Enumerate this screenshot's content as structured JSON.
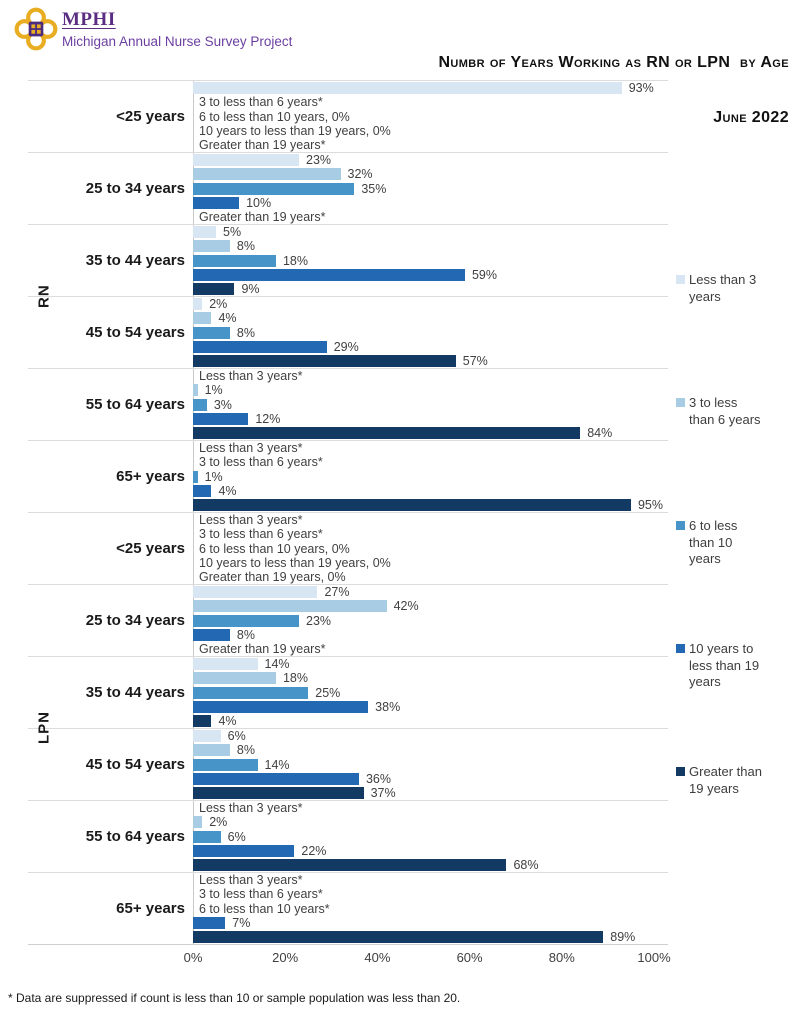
{
  "header": {
    "logo": {
      "acronym": "MPHI",
      "subtitle": "Michigan Annual Nurse Survey Project"
    },
    "title_line1": "Numbr of Years Working as RN or LPN  by Age",
    "title_line2": "June 2022"
  },
  "footnote": "* Data are suppressed if count is less than 10 or sample population was less than 20.",
  "colors": {
    "logo_gold": "#E9AD21",
    "logo_purple": "#4B2B7F",
    "grid_line": "#dcdcdc",
    "axis_line": "#c9c9c9",
    "label_text": "#404040"
  },
  "chart_data": {
    "type": "bar",
    "orientation": "horizontal",
    "title": "Numbr of Years Working as RN or LPN by Age",
    "subtitle": "June 2022",
    "xlim": [
      0,
      100
    ],
    "x_ticks": [
      "0%",
      "20%",
      "40%",
      "60%",
      "80%",
      "100%"
    ],
    "grid": false,
    "legend_position": "right",
    "series_names": [
      "Less than 3 years",
      "3 to less than 6 years",
      "6 to less than 10 years",
      "10 years to less than 19 years",
      "Greater than 19 years"
    ],
    "series_colors": [
      "#d8e6f3",
      "#a7cce4",
      "#4795c8",
      "#2368b2",
      "#123a62"
    ],
    "groups": [
      {
        "name": "RN",
        "age_rows": [
          {
            "age_label": "<25 years",
            "entries": [
              {
                "display": "bar",
                "value": 93,
                "label": "93%"
              },
              {
                "display": "text",
                "value": null,
                "label": "3 to less than 6 years*"
              },
              {
                "display": "text",
                "value": 0,
                "label": "6 to less than 10 years, 0%"
              },
              {
                "display": "text",
                "value": 0,
                "label": "10 years to less than 19 years, 0%"
              },
              {
                "display": "text",
                "value": null,
                "label": "Greater than 19 years*"
              }
            ]
          },
          {
            "age_label": "25 to 34 years",
            "entries": [
              {
                "display": "bar",
                "value": 23,
                "label": "23%"
              },
              {
                "display": "bar",
                "value": 32,
                "label": "32%"
              },
              {
                "display": "bar",
                "value": 35,
                "label": "35%"
              },
              {
                "display": "bar",
                "value": 10,
                "label": "10%"
              },
              {
                "display": "text",
                "value": null,
                "label": "Greater than 19 years*"
              }
            ]
          },
          {
            "age_label": "35 to 44 years",
            "entries": [
              {
                "display": "bar",
                "value": 5,
                "label": "5%"
              },
              {
                "display": "bar",
                "value": 8,
                "label": "8%"
              },
              {
                "display": "bar",
                "value": 18,
                "label": "18%"
              },
              {
                "display": "bar",
                "value": 59,
                "label": "59%"
              },
              {
                "display": "bar",
                "value": 9,
                "label": "9%"
              }
            ]
          },
          {
            "age_label": "45 to 54 years",
            "entries": [
              {
                "display": "bar",
                "value": 2,
                "label": "2%"
              },
              {
                "display": "bar",
                "value": 4,
                "label": "4%"
              },
              {
                "display": "bar",
                "value": 8,
                "label": "8%"
              },
              {
                "display": "bar",
                "value": 29,
                "label": "29%"
              },
              {
                "display": "bar",
                "value": 57,
                "label": "57%"
              }
            ]
          },
          {
            "age_label": "55 to 64 years",
            "entries": [
              {
                "display": "text",
                "value": null,
                "label": "Less than 3 years*"
              },
              {
                "display": "bar",
                "value": 1,
                "label": "1%"
              },
              {
                "display": "bar",
                "value": 3,
                "label": "3%"
              },
              {
                "display": "bar",
                "value": 12,
                "label": "12%"
              },
              {
                "display": "bar",
                "value": 84,
                "label": "84%"
              }
            ]
          },
          {
            "age_label": "65+ years",
            "entries": [
              {
                "display": "text",
                "value": null,
                "label": "Less than 3 years*"
              },
              {
                "display": "text",
                "value": null,
                "label": "3 to less than 6 years*"
              },
              {
                "display": "bar",
                "value": 1,
                "label": "1%"
              },
              {
                "display": "bar",
                "value": 4,
                "label": "4%"
              },
              {
                "display": "bar",
                "value": 95,
                "label": "95%"
              }
            ]
          }
        ]
      },
      {
        "name": "LPN",
        "age_rows": [
          {
            "age_label": "<25 years",
            "entries": [
              {
                "display": "text",
                "value": null,
                "label": "Less than 3 years*"
              },
              {
                "display": "text",
                "value": null,
                "label": "3 to less than 6 years*"
              },
              {
                "display": "text",
                "value": 0,
                "label": "6 to less than 10 years, 0%"
              },
              {
                "display": "text",
                "value": 0,
                "label": "10 years to less than 19 years, 0%"
              },
              {
                "display": "text",
                "value": 0,
                "label": "Greater than 19 years, 0%"
              }
            ]
          },
          {
            "age_label": "25 to 34 years",
            "entries": [
              {
                "display": "bar",
                "value": 27,
                "label": "27%"
              },
              {
                "display": "bar",
                "value": 42,
                "label": "42%"
              },
              {
                "display": "bar",
                "value": 23,
                "label": "23%"
              },
              {
                "display": "bar",
                "value": 8,
                "label": "8%"
              },
              {
                "display": "text",
                "value": null,
                "label": "Greater than 19 years*"
              }
            ]
          },
          {
            "age_label": "35 to 44 years",
            "entries": [
              {
                "display": "bar",
                "value": 14,
                "label": "14%"
              },
              {
                "display": "bar",
                "value": 18,
                "label": "18%"
              },
              {
                "display": "bar",
                "value": 25,
                "label": "25%"
              },
              {
                "display": "bar",
                "value": 38,
                "label": "38%"
              },
              {
                "display": "bar",
                "value": 4,
                "label": "4%"
              }
            ]
          },
          {
            "age_label": "45 to 54 years",
            "entries": [
              {
                "display": "bar",
                "value": 6,
                "label": "6%"
              },
              {
                "display": "bar",
                "value": 8,
                "label": "8%"
              },
              {
                "display": "bar",
                "value": 14,
                "label": "14%"
              },
              {
                "display": "bar",
                "value": 36,
                "label": "36%"
              },
              {
                "display": "bar",
                "value": 37,
                "label": "37%"
              }
            ]
          },
          {
            "age_label": "55 to 64 years",
            "entries": [
              {
                "display": "text",
                "value": null,
                "label": "Less than 3 years*"
              },
              {
                "display": "bar",
                "value": 2,
                "label": "2%"
              },
              {
                "display": "bar",
                "value": 6,
                "label": "6%"
              },
              {
                "display": "bar",
                "value": 22,
                "label": "22%"
              },
              {
                "display": "bar",
                "value": 68,
                "label": "68%"
              }
            ]
          },
          {
            "age_label": "65+ years",
            "entries": [
              {
                "display": "text",
                "value": null,
                "label": "Less than 3 years*"
              },
              {
                "display": "text",
                "value": null,
                "label": "3 to less than 6 years*"
              },
              {
                "display": "text",
                "value": null,
                "label": "6 to less than 10 years*"
              },
              {
                "display": "bar",
                "value": 7,
                "label": "7%"
              },
              {
                "display": "bar",
                "value": 89,
                "label": "89%"
              }
            ]
          }
        ]
      }
    ]
  }
}
